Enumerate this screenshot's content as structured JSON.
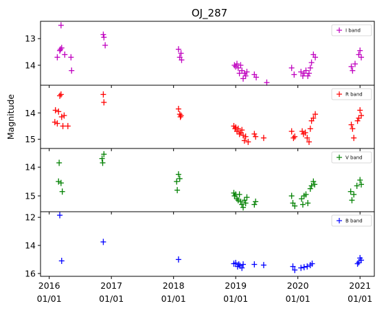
{
  "figure_title": "OJ_287",
  "y_axis_label": "Magnitude",
  "x_ticks": [
    {
      "value": 2016,
      "line1": "2016",
      "line2": "01/01"
    },
    {
      "value": 2017,
      "line1": "2017",
      "line2": "01/01"
    },
    {
      "value": 2018,
      "line1": "2018",
      "line2": "01/01"
    },
    {
      "value": 2019,
      "line1": "2019",
      "line2": "01/01"
    },
    {
      "value": 2020,
      "line1": "2020",
      "line2": "01/01"
    },
    {
      "value": 2021,
      "line1": "2021",
      "line2": "01/01"
    }
  ],
  "chart_data": [
    {
      "type": "scatter",
      "legend": "I band",
      "legend_position": "top-right",
      "color": "#bf00bf",
      "marker": "+",
      "y_inverted": true,
      "xlim": [
        2015.86,
        2021.23
      ],
      "ylim": [
        14.75,
        12.35
      ],
      "yticks": [
        13,
        14
      ],
      "x": [
        2016.13,
        2016.17,
        2016.18,
        2016.19,
        2016.2,
        2016.25,
        2016.35,
        2016.36,
        2016.87,
        2016.88,
        2016.9,
        2018.08,
        2018.1,
        2018.12,
        2018.13,
        2018.98,
        2019.0,
        2019.02,
        2019.04,
        2019.06,
        2019.08,
        2019.1,
        2019.12,
        2019.14,
        2019.16,
        2019.18,
        2019.3,
        2019.33,
        2019.5,
        2019.9,
        2019.94,
        2020.05,
        2020.08,
        2020.1,
        2020.13,
        2020.16,
        2020.18,
        2020.2,
        2020.22,
        2020.25,
        2020.28,
        2020.86,
        2020.88,
        2020.92,
        2020.98,
        2021.0,
        2021.02
      ],
      "y": [
        13.7,
        13.45,
        13.4,
        12.5,
        13.35,
        13.6,
        13.7,
        14.2,
        12.85,
        12.95,
        13.25,
        13.4,
        13.7,
        13.55,
        13.8,
        14.0,
        14.05,
        13.95,
        14.1,
        14.3,
        14.0,
        14.2,
        14.5,
        14.3,
        14.4,
        14.25,
        14.35,
        14.45,
        14.65,
        14.1,
        14.35,
        14.25,
        14.4,
        14.3,
        14.2,
        14.4,
        14.3,
        14.1,
        13.9,
        13.6,
        13.7,
        14.05,
        14.2,
        13.95,
        13.6,
        13.45,
        13.7
      ]
    },
    {
      "type": "scatter",
      "legend": "R band",
      "legend_position": "top-right",
      "color": "#ff0000",
      "marker": "+",
      "y_inverted": true,
      "xlim": [
        2015.86,
        2021.23
      ],
      "ylim": [
        15.35,
        12.95
      ],
      "yticks": [
        14,
        15
      ],
      "x": [
        2016.09,
        2016.1,
        2016.13,
        2016.15,
        2016.17,
        2016.19,
        2016.2,
        2016.22,
        2016.24,
        2016.3,
        2016.87,
        2016.88,
        2018.08,
        2018.1,
        2018.11,
        2018.12,
        2018.97,
        2018.99,
        2019.0,
        2019.02,
        2019.04,
        2019.06,
        2019.08,
        2019.1,
        2019.12,
        2019.14,
        2019.16,
        2019.2,
        2019.3,
        2019.32,
        2019.45,
        2019.9,
        2019.93,
        2019.95,
        2020.07,
        2020.09,
        2020.12,
        2020.15,
        2020.18,
        2020.2,
        2020.22,
        2020.25,
        2020.28,
        2020.86,
        2020.88,
        2020.9,
        2020.96,
        2020.98,
        2021.0,
        2021.02
      ],
      "y": [
        14.35,
        13.9,
        14.4,
        13.95,
        13.35,
        13.3,
        14.15,
        14.5,
        14.1,
        14.5,
        13.3,
        13.6,
        13.85,
        14.05,
        14.15,
        14.1,
        14.5,
        14.6,
        14.55,
        14.7,
        14.6,
        14.8,
        14.75,
        14.65,
        14.85,
        15.05,
        14.9,
        15.1,
        14.8,
        14.9,
        14.95,
        14.7,
        14.95,
        14.9,
        14.7,
        14.8,
        14.75,
        14.95,
        15.1,
        14.6,
        14.3,
        14.2,
        14.05,
        14.45,
        14.6,
        14.95,
        14.3,
        14.2,
        13.9,
        14.1
      ]
    },
    {
      "type": "scatter",
      "legend": "V band",
      "legend_position": "top-right",
      "color": "#008000",
      "marker": "+",
      "y_inverted": true,
      "xlim": [
        2015.86,
        2021.23
      ],
      "ylim": [
        15.55,
        13.35
      ],
      "yticks": [
        14,
        15
      ],
      "x": [
        2016.15,
        2016.16,
        2016.19,
        2016.21,
        2016.85,
        2016.86,
        2016.88,
        2018.05,
        2018.06,
        2018.08,
        2018.1,
        2018.97,
        2018.98,
        2019.0,
        2019.02,
        2019.04,
        2019.06,
        2019.08,
        2019.1,
        2019.12,
        2019.14,
        2019.16,
        2019.18,
        2019.3,
        2019.32,
        2019.9,
        2019.92,
        2019.95,
        2020.06,
        2020.08,
        2020.1,
        2020.13,
        2020.16,
        2020.2,
        2020.22,
        2020.25,
        2020.27,
        2020.85,
        2020.87,
        2020.9,
        2020.95,
        2021.0,
        2021.02
      ],
      "y": [
        14.5,
        13.85,
        14.55,
        14.85,
        13.7,
        13.85,
        13.55,
        14.5,
        14.8,
        14.25,
        14.4,
        14.9,
        15.0,
        14.95,
        15.1,
        15.15,
        14.95,
        15.2,
        15.3,
        15.4,
        15.15,
        15.25,
        15.05,
        15.3,
        15.2,
        15.0,
        15.25,
        15.35,
        15.1,
        15.3,
        15.0,
        14.95,
        15.25,
        14.75,
        14.65,
        14.5,
        14.6,
        14.85,
        15.15,
        14.95,
        14.65,
        14.45,
        14.6
      ]
    },
    {
      "type": "scatter",
      "legend": "B band",
      "legend_position": "top-right",
      "color": "#0000ff",
      "marker": "+",
      "y_inverted": true,
      "xlim": [
        2015.86,
        2021.23
      ],
      "ylim": [
        16.2,
        11.6
      ],
      "yticks": [
        12,
        14,
        16
      ],
      "x": [
        2016.17,
        2016.2,
        2016.87,
        2018.08,
        2018.97,
        2019.0,
        2019.03,
        2019.05,
        2019.07,
        2019.1,
        2019.12,
        2019.3,
        2019.45,
        2019.92,
        2019.95,
        2020.05,
        2020.1,
        2020.15,
        2020.2,
        2020.23,
        2020.96,
        2020.98,
        2021.0,
        2021.02
      ],
      "y": [
        11.85,
        15.1,
        13.75,
        15.0,
        15.3,
        15.25,
        15.5,
        15.35,
        15.45,
        15.6,
        15.35,
        15.35,
        15.4,
        15.5,
        15.75,
        15.6,
        15.55,
        15.5,
        15.4,
        15.3,
        15.3,
        15.2,
        14.9,
        15.05
      ]
    }
  ]
}
